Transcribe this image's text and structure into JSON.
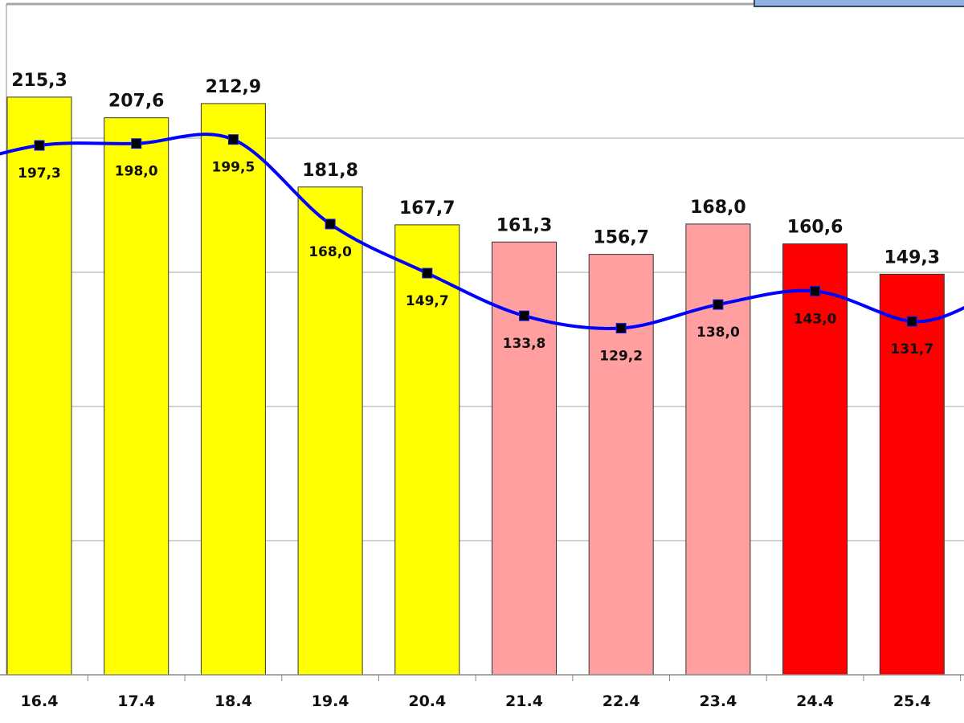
{
  "chart_data": {
    "type": "bar",
    "categories": [
      "16.4",
      "17.4",
      "18.4",
      "19.4",
      "20.4",
      "21.4",
      "22.4",
      "23.4",
      "24.4",
      "25.4"
    ],
    "series": [
      {
        "type": "bar",
        "values": [
          215.3,
          207.6,
          212.9,
          181.8,
          167.7,
          161.3,
          156.7,
          168.0,
          160.6,
          149.3
        ],
        "labels": [
          "215,3",
          "207,6",
          "212,9",
          "181,8",
          "167,7",
          "161,3",
          "156,7",
          "168,0",
          "160,6",
          "149,3"
        ],
        "colors": [
          "#ffff00",
          "#ffff00",
          "#ffff00",
          "#ffff00",
          "#ffff00",
          "#ff9f9f",
          "#ff9f9f",
          "#ff9f9f",
          "#ff0000",
          "#ff0000"
        ]
      },
      {
        "type": "line",
        "values": [
          197.3,
          198.0,
          199.5,
          168.0,
          149.7,
          133.8,
          129.2,
          138.0,
          143.0,
          131.7
        ],
        "labels": [
          "197,3",
          "198,0",
          "199,5",
          "168,0",
          "149,7",
          "133,8",
          "129,2",
          "138,0",
          "143,0",
          "131,7"
        ],
        "color": "#0000ff",
        "marker": "square",
        "marker_color": "#000000"
      }
    ],
    "ylim": [
      0,
      250
    ],
    "grid": true,
    "legend_color": "#8db3e2"
  }
}
